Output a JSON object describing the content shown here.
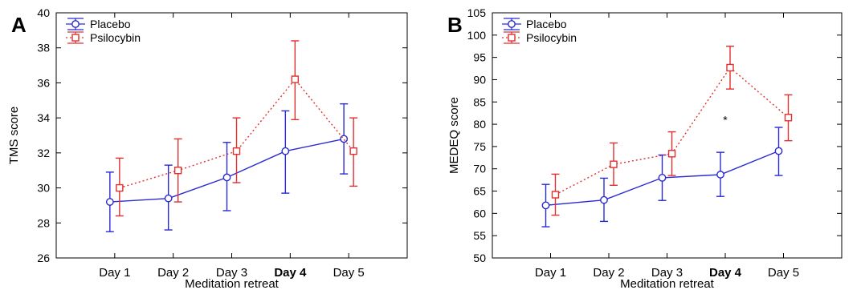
{
  "chart_data": [
    {
      "type": "line",
      "panel_label": "A",
      "xlabel": "Meditation retreat",
      "ylabel": "TMS score",
      "categories": [
        "Day 1",
        "Day 2",
        "Day 3",
        "Day 4",
        "Day 5"
      ],
      "bold_category_index": 3,
      "ylim": [
        26,
        40
      ],
      "yticks": [
        "26",
        "28",
        "30",
        "32",
        "34",
        "36",
        "38",
        "40"
      ],
      "grid": false,
      "legend_position": "top-left",
      "annotations": [],
      "series": [
        {
          "name": "Placebo",
          "color": "#2a2ad4",
          "line_style": "solid",
          "marker": "circle",
          "values": [
            29.2,
            29.4,
            30.6,
            32.1,
            32.8
          ],
          "error_low": [
            27.5,
            27.6,
            28.7,
            29.7,
            30.8
          ],
          "error_high": [
            30.9,
            31.3,
            32.6,
            34.4,
            34.8
          ]
        },
        {
          "name": "Psilocybin",
          "color": "#e03030",
          "line_style": "dotted",
          "marker": "square",
          "values": [
            30.0,
            31.0,
            32.1,
            36.2,
            32.1
          ],
          "error_low": [
            28.4,
            29.2,
            30.3,
            33.9,
            30.1
          ],
          "error_high": [
            31.7,
            32.8,
            34.0,
            38.4,
            34.0
          ]
        }
      ]
    },
    {
      "type": "line",
      "panel_label": "B",
      "xlabel": "Meditation retreat",
      "ylabel": "MEDEQ score",
      "categories": [
        "Day 1",
        "Day 2",
        "Day 3",
        "Day 4",
        "Day 5"
      ],
      "bold_category_index": 3,
      "ylim": [
        50,
        105
      ],
      "yticks": [
        "50",
        "55",
        "60",
        "65",
        "70",
        "75",
        "80",
        "85",
        "90",
        "95",
        "100",
        "105"
      ],
      "grid": false,
      "legend_position": "top-left",
      "annotations": [
        {
          "text": "*",
          "x_index": 3,
          "y": 81
        }
      ],
      "series": [
        {
          "name": "Placebo",
          "color": "#2a2ad4",
          "line_style": "solid",
          "marker": "circle",
          "values": [
            61.8,
            63.0,
            68.0,
            68.7,
            74.0
          ],
          "error_low": [
            57.0,
            58.2,
            62.9,
            63.8,
            68.5
          ],
          "error_high": [
            66.5,
            67.9,
            73.1,
            73.7,
            79.3
          ]
        },
        {
          "name": "Psilocybin",
          "color": "#e03030",
          "line_style": "dotted",
          "marker": "square",
          "values": [
            64.2,
            71.0,
            73.4,
            92.7,
            81.5
          ],
          "error_low": [
            59.6,
            66.3,
            68.5,
            87.9,
            76.3
          ],
          "error_high": [
            68.8,
            75.8,
            78.3,
            97.5,
            86.6
          ]
        }
      ]
    }
  ]
}
